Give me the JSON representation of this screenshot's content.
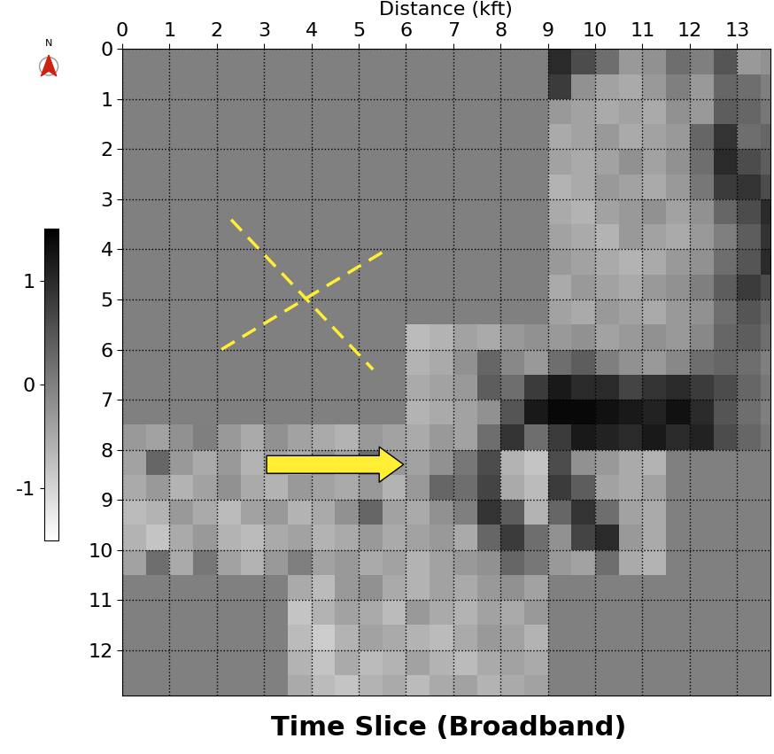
{
  "chart_data": {
    "type": "heatmap",
    "title": "Time Slice (Broadband)",
    "x_label": "Distance (kft)",
    "north_label": "N",
    "xlim": [
      0,
      13.7
    ],
    "ylim": [
      12.9,
      0
    ],
    "xticks": [
      0,
      1,
      2,
      3,
      4,
      5,
      6,
      7,
      8,
      9,
      10,
      11,
      12,
      13
    ],
    "yticks": [
      0,
      1,
      2,
      3,
      4,
      5,
      6,
      7,
      8,
      9,
      10,
      11,
      12
    ],
    "grid": true,
    "colorbar_range": [
      -1.5,
      1.5
    ],
    "colorbar_ticks": [
      1,
      0,
      -1
    ],
    "x_edges": [
      0,
      0.5,
      1,
      1.5,
      2,
      2.5,
      3,
      3.5,
      4,
      4.5,
      5,
      5.5,
      6,
      6.5,
      7,
      7.5,
      8,
      8.5,
      9,
      9.5,
      10,
      10.5,
      11,
      11.5,
      12,
      12.5,
      13,
      13.5,
      14
    ],
    "y_edges": [
      0,
      0.5,
      1,
      1.5,
      2,
      2.5,
      3,
      3.5,
      4,
      4.5,
      5,
      5.5,
      6,
      6.5,
      7,
      7.5,
      8,
      8.5,
      9,
      9.5,
      10,
      10.5,
      11,
      11.5,
      12,
      12.5,
      13
    ],
    "values": [
      [
        null,
        null,
        null,
        null,
        null,
        null,
        null,
        null,
        null,
        null,
        null,
        null,
        null,
        null,
        null,
        null,
        null,
        null,
        1.0,
        0.6,
        0.2,
        -0.3,
        -0.2,
        0.2,
        0.0,
        0.5,
        -0.3,
        -0.2
      ],
      [
        null,
        null,
        null,
        null,
        null,
        null,
        null,
        null,
        null,
        null,
        null,
        null,
        null,
        null,
        null,
        null,
        null,
        null,
        0.8,
        -0.2,
        -0.4,
        -0.5,
        -0.3,
        0.0,
        -0.3,
        0.3,
        0.2,
        0.0
      ],
      [
        null,
        null,
        null,
        null,
        null,
        null,
        null,
        null,
        null,
        null,
        null,
        null,
        null,
        null,
        null,
        null,
        null,
        null,
        -0.3,
        -0.4,
        -0.5,
        -0.4,
        -0.5,
        -0.2,
        -0.3,
        0.4,
        0.3,
        0.1
      ],
      [
        null,
        null,
        null,
        null,
        null,
        null,
        null,
        null,
        null,
        null,
        null,
        null,
        null,
        null,
        null,
        null,
        null,
        null,
        -0.5,
        -0.4,
        -0.3,
        -0.5,
        -0.4,
        -0.3,
        0.3,
        0.9,
        0.2,
        0.3
      ],
      [
        null,
        null,
        null,
        null,
        null,
        null,
        null,
        null,
        null,
        null,
        null,
        null,
        null,
        null,
        null,
        null,
        null,
        null,
        -0.4,
        -0.5,
        -0.4,
        -0.2,
        -0.4,
        -0.2,
        0.2,
        1.0,
        0.6,
        0.4
      ],
      [
        null,
        null,
        null,
        null,
        null,
        null,
        null,
        null,
        null,
        null,
        null,
        null,
        null,
        null,
        null,
        null,
        null,
        null,
        -0.6,
        -0.5,
        -0.3,
        -0.4,
        -0.5,
        -0.3,
        0.1,
        0.8,
        0.9,
        0.6
      ],
      [
        null,
        null,
        null,
        null,
        null,
        null,
        null,
        null,
        null,
        null,
        null,
        null,
        null,
        null,
        null,
        null,
        null,
        null,
        -0.5,
        -0.6,
        -0.4,
        -0.3,
        -0.2,
        -0.4,
        -0.2,
        0.3,
        0.6,
        1.0
      ],
      [
        null,
        null,
        null,
        null,
        null,
        null,
        null,
        null,
        null,
        null,
        null,
        null,
        null,
        null,
        null,
        null,
        null,
        null,
        -0.4,
        -0.5,
        -0.6,
        -0.3,
        -0.4,
        -0.5,
        -0.3,
        0.0,
        0.4,
        0.9
      ],
      [
        null,
        null,
        null,
        null,
        null,
        null,
        null,
        null,
        null,
        null,
        null,
        null,
        null,
        null,
        null,
        null,
        null,
        null,
        -0.3,
        -0.4,
        -0.5,
        -0.6,
        -0.5,
        -0.3,
        -0.2,
        0.2,
        0.5,
        1.0
      ],
      [
        null,
        null,
        null,
        null,
        null,
        null,
        null,
        null,
        null,
        null,
        null,
        null,
        null,
        null,
        null,
        null,
        null,
        null,
        -0.5,
        -0.3,
        -0.4,
        -0.5,
        -0.3,
        -0.2,
        0.0,
        0.4,
        0.8,
        0.6
      ],
      [
        null,
        null,
        null,
        null,
        null,
        null,
        null,
        null,
        null,
        null,
        null,
        null,
        null,
        null,
        null,
        null,
        null,
        null,
        -0.4,
        -0.5,
        -0.3,
        -0.4,
        -0.5,
        -0.3,
        -0.2,
        0.2,
        0.5,
        0.3
      ],
      [
        null,
        null,
        null,
        null,
        null,
        null,
        null,
        null,
        null,
        null,
        null,
        null,
        -0.7,
        -0.6,
        -0.4,
        -0.5,
        -0.3,
        -0.2,
        -0.3,
        -0.2,
        -0.4,
        -0.3,
        -0.2,
        -0.3,
        -0.1,
        0.3,
        0.4,
        0.2
      ],
      [
        null,
        null,
        null,
        null,
        null,
        null,
        null,
        null,
        null,
        null,
        null,
        null,
        -0.6,
        -0.5,
        -0.2,
        0.3,
        -0.1,
        -0.3,
        0.2,
        0.4,
        0.0,
        -0.2,
        -0.3,
        -0.1,
        0.2,
        0.3,
        0.2,
        0.0
      ],
      [
        null,
        null,
        null,
        null,
        null,
        null,
        null,
        null,
        null,
        null,
        null,
        null,
        -0.5,
        -0.4,
        -0.3,
        0.4,
        0.2,
        0.8,
        1.2,
        1.0,
        1.0,
        0.7,
        0.9,
        1.0,
        0.8,
        0.6,
        0.3,
        0.1
      ],
      [
        null,
        null,
        null,
        null,
        null,
        null,
        null,
        null,
        null,
        null,
        null,
        null,
        -0.6,
        -0.5,
        -0.4,
        -0.2,
        0.5,
        1.2,
        1.4,
        1.4,
        1.3,
        1.2,
        1.1,
        1.3,
        1.0,
        0.5,
        0.2,
        0.0
      ],
      [
        -0.3,
        -0.4,
        -0.2,
        0.0,
        -0.3,
        -0.5,
        -0.2,
        -0.4,
        -0.5,
        -0.6,
        -0.3,
        -0.4,
        -0.5,
        -0.3,
        -0.4,
        0.2,
        0.9,
        0.2,
        0.8,
        1.2,
        1.1,
        1.0,
        1.2,
        1.0,
        1.1,
        0.6,
        0.3,
        0.1
      ],
      [
        -0.4,
        0.3,
        -0.3,
        -0.5,
        -0.3,
        -0.6,
        -0.4,
        -0.5,
        -0.2,
        -0.4,
        0.2,
        -0.3,
        -0.4,
        -0.2,
        0.1,
        0.6,
        -0.6,
        -0.8,
        0.6,
        -0.2,
        -0.3,
        -0.5,
        -0.6,
        null,
        null,
        null,
        null,
        null
      ],
      [
        -0.5,
        -0.3,
        -0.6,
        -0.4,
        -0.2,
        -0.5,
        -0.6,
        -0.3,
        -0.4,
        -0.5,
        -0.3,
        -0.6,
        -0.3,
        0.3,
        0.2,
        0.7,
        -0.5,
        -0.7,
        0.8,
        0.4,
        -0.4,
        -0.5,
        -0.4,
        null,
        null,
        null,
        null,
        null
      ],
      [
        -0.7,
        -0.6,
        -0.3,
        -0.5,
        -0.7,
        -0.4,
        -0.3,
        -0.6,
        -0.5,
        -0.2,
        0.3,
        -0.4,
        -0.5,
        -0.2,
        0.0,
        0.9,
        0.4,
        -0.6,
        0.3,
        0.9,
        0.2,
        -0.4,
        -0.5,
        null,
        null,
        null,
        null,
        null
      ],
      [
        -0.6,
        -0.8,
        -0.5,
        -0.3,
        -0.6,
        -0.7,
        -0.5,
        -0.4,
        -0.6,
        -0.5,
        -0.3,
        -0.5,
        -0.4,
        -0.3,
        -0.5,
        0.3,
        0.8,
        0.2,
        -0.2,
        0.7,
        1.0,
        -0.3,
        -0.5,
        null,
        null,
        null,
        null,
        null
      ],
      [
        -0.4,
        0.2,
        -0.5,
        0.1,
        -0.4,
        -0.6,
        -0.3,
        0.0,
        -0.4,
        -0.3,
        -0.5,
        -0.4,
        -0.6,
        -0.4,
        -0.3,
        -0.2,
        0.3,
        0.1,
        -0.3,
        -0.4,
        0.2,
        -0.5,
        -0.6,
        null,
        null,
        null,
        null,
        null
      ],
      [
        null,
        null,
        null,
        null,
        null,
        null,
        null,
        -0.5,
        -0.7,
        -0.3,
        -0.2,
        -0.5,
        -0.6,
        -0.4,
        -0.5,
        -0.3,
        -0.2,
        -0.4,
        null,
        null,
        null,
        null,
        null,
        null,
        null,
        null,
        null,
        null
      ],
      [
        null,
        null,
        null,
        null,
        null,
        null,
        null,
        -0.8,
        -0.6,
        -0.4,
        -0.5,
        -0.7,
        -0.3,
        -0.5,
        -0.6,
        -0.4,
        -0.5,
        -0.3,
        null,
        null,
        null,
        null,
        null,
        null,
        null,
        null,
        null,
        null
      ],
      [
        null,
        null,
        null,
        null,
        null,
        null,
        null,
        -0.7,
        -0.9,
        -0.6,
        -0.4,
        -0.5,
        -0.6,
        -0.7,
        -0.5,
        -0.3,
        -0.4,
        -0.6,
        null,
        null,
        null,
        null,
        null,
        null,
        null,
        null,
        null,
        null
      ],
      [
        null,
        null,
        null,
        null,
        null,
        null,
        null,
        -0.6,
        -0.8,
        -0.5,
        -0.7,
        -0.6,
        -0.4,
        -0.6,
        -0.7,
        -0.5,
        -0.4,
        -0.5,
        null,
        null,
        null,
        null,
        null,
        null,
        null,
        null,
        null,
        null
      ],
      [
        null,
        null,
        null,
        null,
        null,
        null,
        null,
        -0.5,
        -0.7,
        -0.8,
        -0.6,
        -0.5,
        -0.7,
        -0.5,
        -0.4,
        -0.6,
        -0.5,
        -0.4,
        null,
        null,
        null,
        null,
        null,
        null,
        null,
        null,
        null,
        null
      ]
    ]
  }
}
